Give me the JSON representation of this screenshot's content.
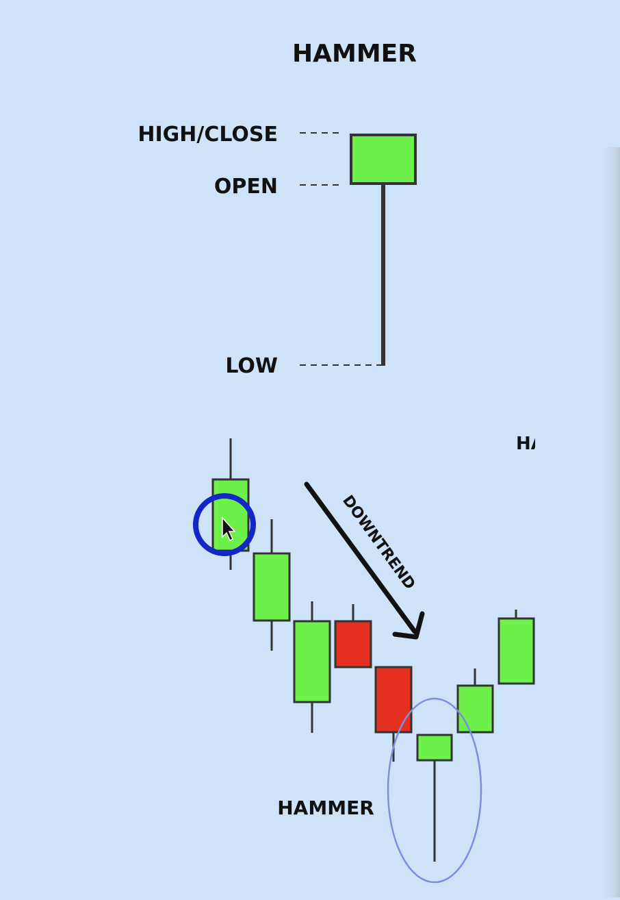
{
  "title": "HAMMER",
  "labels": {
    "high_close": "HIGH/CLOSE",
    "open": "OPEN",
    "low": "LOW"
  },
  "trend_label": "DOWNTREND",
  "pattern_label": "HAMMER",
  "clipped_heading": "HA",
  "colors": {
    "background": "#cfe3f8",
    "bullish": "#6ef04a",
    "bearish": "#e33020",
    "outline": "#333333",
    "text": "#111111",
    "cursor_ring": "#1326c8",
    "highlight_ellipse": "#7b8fe0"
  },
  "icons": {
    "cursor": "mouse-pointer-icon",
    "arrow": "arrow-down-right-icon"
  }
}
